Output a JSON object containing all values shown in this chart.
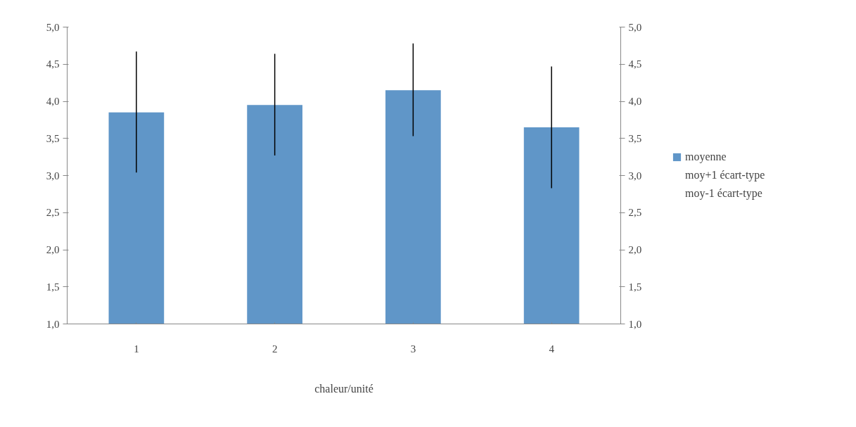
{
  "chart_data": {
    "type": "bar",
    "xlabel": "chaleur/unité",
    "categories": [
      "1",
      "2",
      "3",
      "4"
    ],
    "series": [
      {
        "name": "moyenne",
        "color": "#6096c8",
        "values": [
          3.85,
          3.95,
          4.15,
          3.65
        ],
        "errors": [
          [
            3.04,
            4.67
          ],
          [
            3.27,
            4.64
          ],
          [
            3.53,
            4.78
          ],
          [
            2.83,
            4.47
          ]
        ]
      },
      {
        "name": "moy+1 écart-type",
        "values": [
          null,
          null,
          null,
          null
        ]
      },
      {
        "name": "moy-1 écart-type",
        "values": [
          null,
          null,
          null,
          null
        ]
      }
    ],
    "ylim": [
      1.0,
      5.0
    ],
    "yticks": [
      {
        "value": 1.0,
        "label": "1,0"
      },
      {
        "value": 1.5,
        "label": "1,5"
      },
      {
        "value": 2.0,
        "label": "2,0"
      },
      {
        "value": 2.5,
        "label": "2,5"
      },
      {
        "value": 3.0,
        "label": "3,0"
      },
      {
        "value": 3.5,
        "label": "3,5"
      },
      {
        "value": 4.0,
        "label": "4,0"
      },
      {
        "value": 4.5,
        "label": "4,5"
      },
      {
        "value": 5.0,
        "label": "5,0"
      }
    ],
    "y2lim": [
      1.0,
      5.0
    ],
    "y2ticks": [
      {
        "value": 1.0,
        "label": "1,0"
      },
      {
        "value": 1.5,
        "label": "1,5"
      },
      {
        "value": 2.0,
        "label": "2,0"
      },
      {
        "value": 2.5,
        "label": "2,5"
      },
      {
        "value": 3.0,
        "label": "3,0"
      },
      {
        "value": 3.5,
        "label": "3,5"
      },
      {
        "value": 4.0,
        "label": "4,0"
      },
      {
        "value": 4.5,
        "label": "4,5"
      },
      {
        "value": 5.0,
        "label": "5,0"
      }
    ],
    "grid": false,
    "legend": "right"
  }
}
